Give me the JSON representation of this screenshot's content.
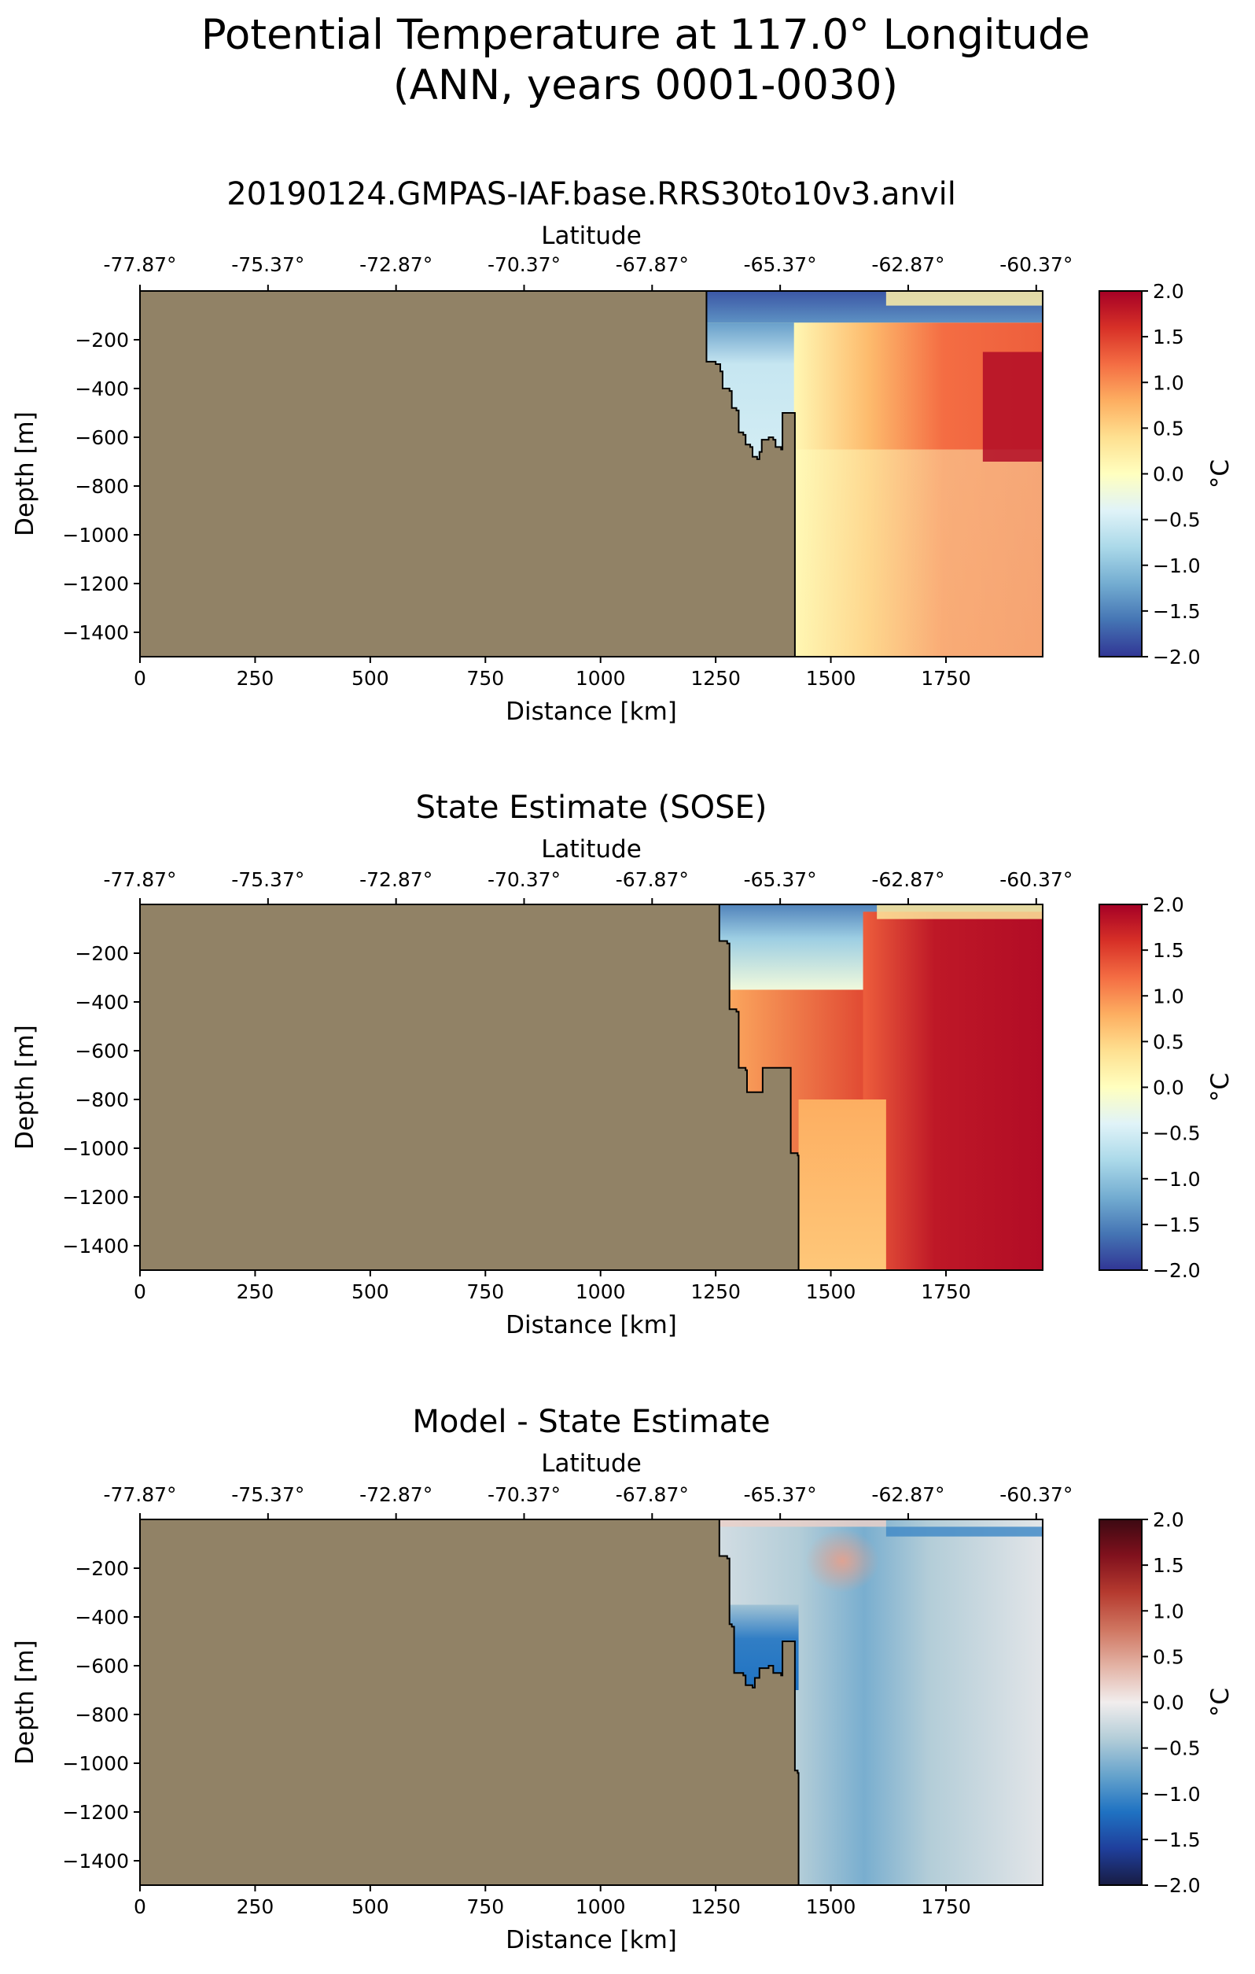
{
  "figure": {
    "title_line1": "Potential Temperature at 117.0° Longitude",
    "title_line2": "(ANN, years 0001-0030)"
  },
  "chart_data": [
    {
      "type": "heatmap",
      "title": "20190124.GMPAS-IAF.base.RRS30to10v3.anvil",
      "xlabel": "Distance [km]",
      "ylabel": "Depth [m]",
      "top_xlabel": "Latitude",
      "colorbar_label": "°C",
      "colormap": "RdYlBu_r",
      "xlim": [
        0,
        1960
      ],
      "ylim": [
        -1500,
        0
      ],
      "clim": [
        -2.0,
        2.0
      ],
      "x_ticks": [
        0,
        250,
        500,
        750,
        1000,
        1250,
        1500,
        1750
      ],
      "y_ticks": [
        -200,
        -400,
        -600,
        -800,
        -1000,
        -1200,
        -1400
      ],
      "top_ticks": [
        "-77.87°",
        "-75.37°",
        "-72.87°",
        "-70.37°",
        "-67.87°",
        "-65.37°",
        "-62.87°",
        "-60.37°"
      ],
      "top_tick_positions_km": [
        0,
        278,
        556,
        834,
        1112,
        1390,
        1668,
        1946
      ],
      "cbar_ticks": [
        "2.0",
        "1.5",
        "1.0",
        "0.5",
        "0.0",
        "−0.5",
        "−1.0",
        "−1.5",
        "−2.0"
      ],
      "land_color": "#918266",
      "bathymetry": [
        [
          1230,
          0
        ],
        [
          1230,
          -290
        ],
        [
          1250,
          -300
        ],
        [
          1260,
          -330
        ],
        [
          1265,
          -400
        ],
        [
          1280,
          -410
        ],
        [
          1285,
          -480
        ],
        [
          1295,
          -490
        ],
        [
          1300,
          -580
        ],
        [
          1310,
          -590
        ],
        [
          1315,
          -630
        ],
        [
          1325,
          -640
        ],
        [
          1330,
          -680
        ],
        [
          1340,
          -690
        ],
        [
          1345,
          -660
        ],
        [
          1350,
          -610
        ],
        [
          1365,
          -600
        ],
        [
          1375,
          -610
        ],
        [
          1380,
          -640
        ],
        [
          1392,
          -650
        ],
        [
          1395,
          -500
        ],
        [
          1420,
          -500
        ],
        [
          1422,
          -1500
        ]
      ],
      "fields": [
        {
          "kind": "vgrad",
          "x0": 1230,
          "x1": 1960,
          "y0": 0,
          "y1": -130,
          "stops": [
            [
              0,
              -1.8
            ],
            [
              1,
              -1.4
            ]
          ]
        },
        {
          "kind": "vgrad",
          "x0": 1230,
          "x1": 1430,
          "y0": -130,
          "y1": -700,
          "stops": [
            [
              0,
              -1.3
            ],
            [
              0.3,
              -0.6
            ],
            [
              1,
              -0.5
            ]
          ]
        },
        {
          "kind": "hgrad",
          "x0": 1420,
          "x1": 1960,
          "y0": -130,
          "y1": -1500,
          "stops": [
            [
              0,
              0.1
            ],
            [
              0.3,
              0.7
            ],
            [
              0.6,
              1.2
            ],
            [
              1,
              1.3
            ]
          ]
        },
        {
          "kind": "vgrad",
          "x0": 1420,
          "x1": 1960,
          "y0": -650,
          "y1": -1500,
          "stops": [
            [
              0,
              0.0
            ],
            [
              1,
              0.1
            ]
          ],
          "blend": "lower"
        },
        {
          "kind": "rect",
          "x0": 1620,
          "x1": 1960,
          "y0": 0,
          "y1": -60,
          "value": 0.2
        },
        {
          "kind": "rect",
          "x0": 1830,
          "x1": 1960,
          "y0": -250,
          "y1": -700,
          "value": 1.9
        }
      ]
    },
    {
      "type": "heatmap",
      "title": "State Estimate (SOSE)",
      "xlabel": "Distance [km]",
      "ylabel": "Depth [m]",
      "top_xlabel": "Latitude",
      "colorbar_label": "°C",
      "colormap": "RdYlBu_r",
      "xlim": [
        0,
        1960
      ],
      "ylim": [
        -1500,
        0
      ],
      "clim": [
        -2.0,
        2.0
      ],
      "x_ticks": [
        0,
        250,
        500,
        750,
        1000,
        1250,
        1500,
        1750
      ],
      "y_ticks": [
        -200,
        -400,
        -600,
        -800,
        -1000,
        -1200,
        -1400
      ],
      "top_ticks": [
        "-77.87°",
        "-75.37°",
        "-72.87°",
        "-70.37°",
        "-67.87°",
        "-65.37°",
        "-62.87°",
        "-60.37°"
      ],
      "top_tick_positions_km": [
        0,
        278,
        556,
        834,
        1112,
        1390,
        1668,
        1946
      ],
      "cbar_ticks": [
        "2.0",
        "1.5",
        "1.0",
        "0.5",
        "0.0",
        "−0.5",
        "−1.0",
        "−1.5",
        "−2.0"
      ],
      "land_color": "#918266",
      "bathymetry": [
        [
          1255,
          0
        ],
        [
          1258,
          -150
        ],
        [
          1275,
          -160
        ],
        [
          1280,
          -430
        ],
        [
          1295,
          -440
        ],
        [
          1300,
          -670
        ],
        [
          1315,
          -680
        ],
        [
          1318,
          -770
        ],
        [
          1350,
          -770
        ],
        [
          1352,
          -670
        ],
        [
          1410,
          -670
        ],
        [
          1413,
          -1020
        ],
        [
          1428,
          -1030
        ],
        [
          1430,
          -1500
        ]
      ],
      "fields": [
        {
          "kind": "vgrad",
          "x0": 1255,
          "x1": 1960,
          "y0": 0,
          "y1": -350,
          "stops": [
            [
              0,
              -1.5
            ],
            [
              0.4,
              -0.9
            ],
            [
              1,
              -0.2
            ]
          ]
        },
        {
          "kind": "hgrad",
          "x0": 1255,
          "x1": 1960,
          "y0": -350,
          "y1": -1500,
          "stops": [
            [
              0,
              0.8
            ],
            [
              0.5,
              1.5
            ],
            [
              1,
              1.7
            ]
          ]
        },
        {
          "kind": "hgrad",
          "x0": 1570,
          "x1": 1960,
          "y0": -30,
          "y1": -1500,
          "stops": [
            [
              0,
              1.3
            ],
            [
              0.4,
              1.8
            ],
            [
              1,
              1.9
            ]
          ]
        },
        {
          "kind": "rect",
          "x0": 1600,
          "x1": 1960,
          "y0": 0,
          "y1": -60,
          "value": 0.3
        },
        {
          "kind": "vgrad",
          "x0": 1430,
          "x1": 1620,
          "y0": -800,
          "y1": -1500,
          "stops": [
            [
              0,
              0.8
            ],
            [
              1,
              0.6
            ]
          ]
        }
      ]
    },
    {
      "type": "heatmap",
      "title": "Model - State Estimate",
      "xlabel": "Distance [km]",
      "ylabel": "Depth [m]",
      "top_xlabel": "Latitude",
      "colorbar_label": "°C",
      "colormap": "balance",
      "xlim": [
        0,
        1960
      ],
      "ylim": [
        -1500,
        0
      ],
      "clim": [
        -2.0,
        2.0
      ],
      "x_ticks": [
        0,
        250,
        500,
        750,
        1000,
        1250,
        1500,
        1750
      ],
      "y_ticks": [
        -200,
        -400,
        -600,
        -800,
        -1000,
        -1200,
        -1400
      ],
      "top_ticks": [
        "-77.87°",
        "-75.37°",
        "-72.87°",
        "-70.37°",
        "-67.87°",
        "-65.37°",
        "-62.87°",
        "-60.37°"
      ],
      "top_tick_positions_km": [
        0,
        278,
        556,
        834,
        1112,
        1390,
        1668,
        1946
      ],
      "cbar_ticks": [
        "2.0",
        "1.5",
        "1.0",
        "0.5",
        "0.0",
        "−0.5",
        "−1.0",
        "−1.5",
        "−2.0"
      ],
      "land_color": "#918266",
      "bathymetry": [
        [
          1255,
          0
        ],
        [
          1258,
          -150
        ],
        [
          1275,
          -160
        ],
        [
          1280,
          -430
        ],
        [
          1285,
          -440
        ],
        [
          1290,
          -630
        ],
        [
          1310,
          -640
        ],
        [
          1315,
          -680
        ],
        [
          1330,
          -690
        ],
        [
          1335,
          -650
        ],
        [
          1345,
          -610
        ],
        [
          1365,
          -600
        ],
        [
          1375,
          -630
        ],
        [
          1392,
          -640
        ],
        [
          1395,
          -500
        ],
        [
          1418,
          -500
        ],
        [
          1422,
          -1030
        ],
        [
          1428,
          -1040
        ],
        [
          1430,
          -1500
        ]
      ],
      "fields": [
        {
          "kind": "hgrad",
          "x0": 1255,
          "x1": 1960,
          "y0": 0,
          "y1": -1500,
          "stops": [
            [
              0,
              -0.2
            ],
            [
              0.25,
              -0.4
            ],
            [
              0.45,
              -0.7
            ],
            [
              0.65,
              -0.4
            ],
            [
              1,
              -0.1
            ]
          ]
        },
        {
          "kind": "vgrad",
          "x0": 1255,
          "x1": 1430,
          "y0": -350,
          "y1": -700,
          "stops": [
            [
              0,
              -0.5
            ],
            [
              0.4,
              -1.1
            ],
            [
              1,
              -1.2
            ]
          ]
        },
        {
          "kind": "ellipse",
          "cx": 1525,
          "cy": -170,
          "rx": 80,
          "ry": 130,
          "value": 0.5
        },
        {
          "kind": "rect",
          "x0": 1620,
          "x1": 1960,
          "y0": -30,
          "y1": -70,
          "value": -1.0
        },
        {
          "kind": "rect",
          "x0": 1255,
          "x1": 1620,
          "y0": 0,
          "y1": -30,
          "value": 0.2
        }
      ]
    }
  ]
}
